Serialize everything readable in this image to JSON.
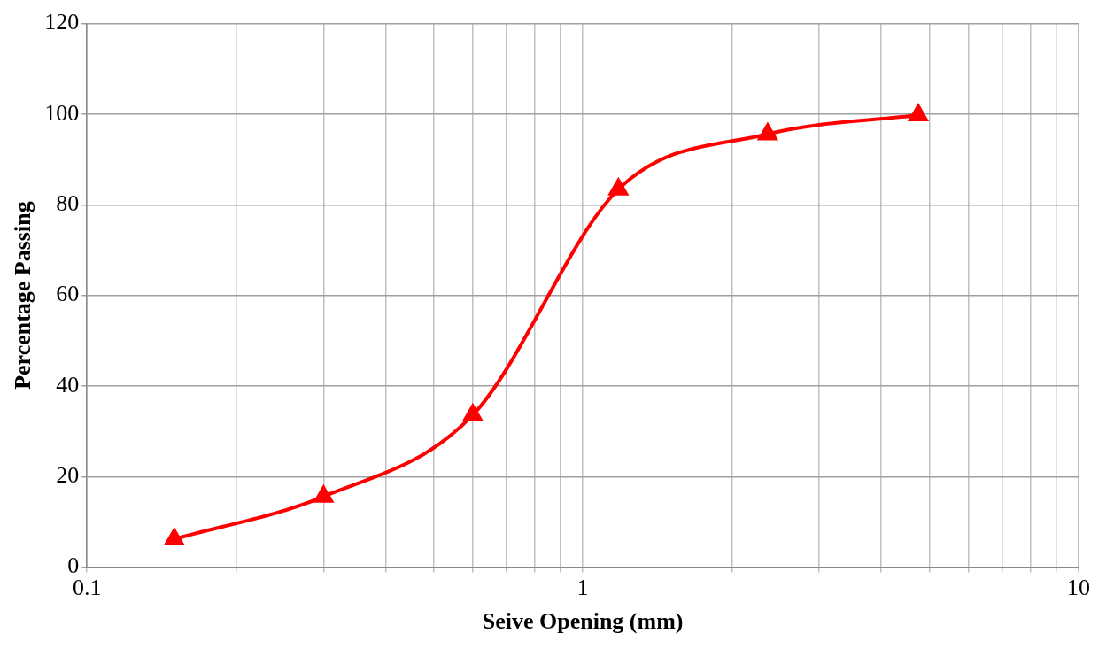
{
  "chart_data": {
    "type": "line",
    "xlabel": "Seive Opening (mm)",
    "ylabel": "Percentage Passing",
    "log": "x",
    "xlim": [
      0.1,
      10
    ],
    "ylim": [
      0,
      120
    ],
    "xticks": [
      0.1,
      {
        "value": 0.2,
        "label": null
      },
      {
        "value": 0.3,
        "label": null
      },
      {
        "value": 0.4,
        "label": null
      },
      {
        "value": 0.5,
        "label": null
      },
      {
        "value": 0.6,
        "label": null
      },
      {
        "value": 0.7,
        "label": null
      },
      {
        "value": 0.8,
        "label": null
      },
      {
        "value": 0.9,
        "label": null
      },
      1,
      {
        "value": 2,
        "label": null
      },
      {
        "value": 3,
        "label": null
      },
      {
        "value": 4,
        "label": null
      },
      {
        "value": 5,
        "label": null
      },
      {
        "value": 6,
        "label": null
      },
      {
        "value": 7,
        "label": null
      },
      {
        "value": 8,
        "label": null
      },
      {
        "value": 9,
        "label": null
      },
      10
    ],
    "yticks": [
      0,
      20,
      40,
      60,
      80,
      100,
      120
    ],
    "grid": true,
    "marker": "triangle",
    "line_style": "solid",
    "series": [
      {
        "color": "#ff0000",
        "x": [
          0.15,
          0.3,
          0.6,
          1.18,
          2.36,
          4.75
        ],
        "values": [
          6.2,
          15.6,
          33.6,
          83.4,
          95.6,
          99.8
        ]
      }
    ]
  }
}
